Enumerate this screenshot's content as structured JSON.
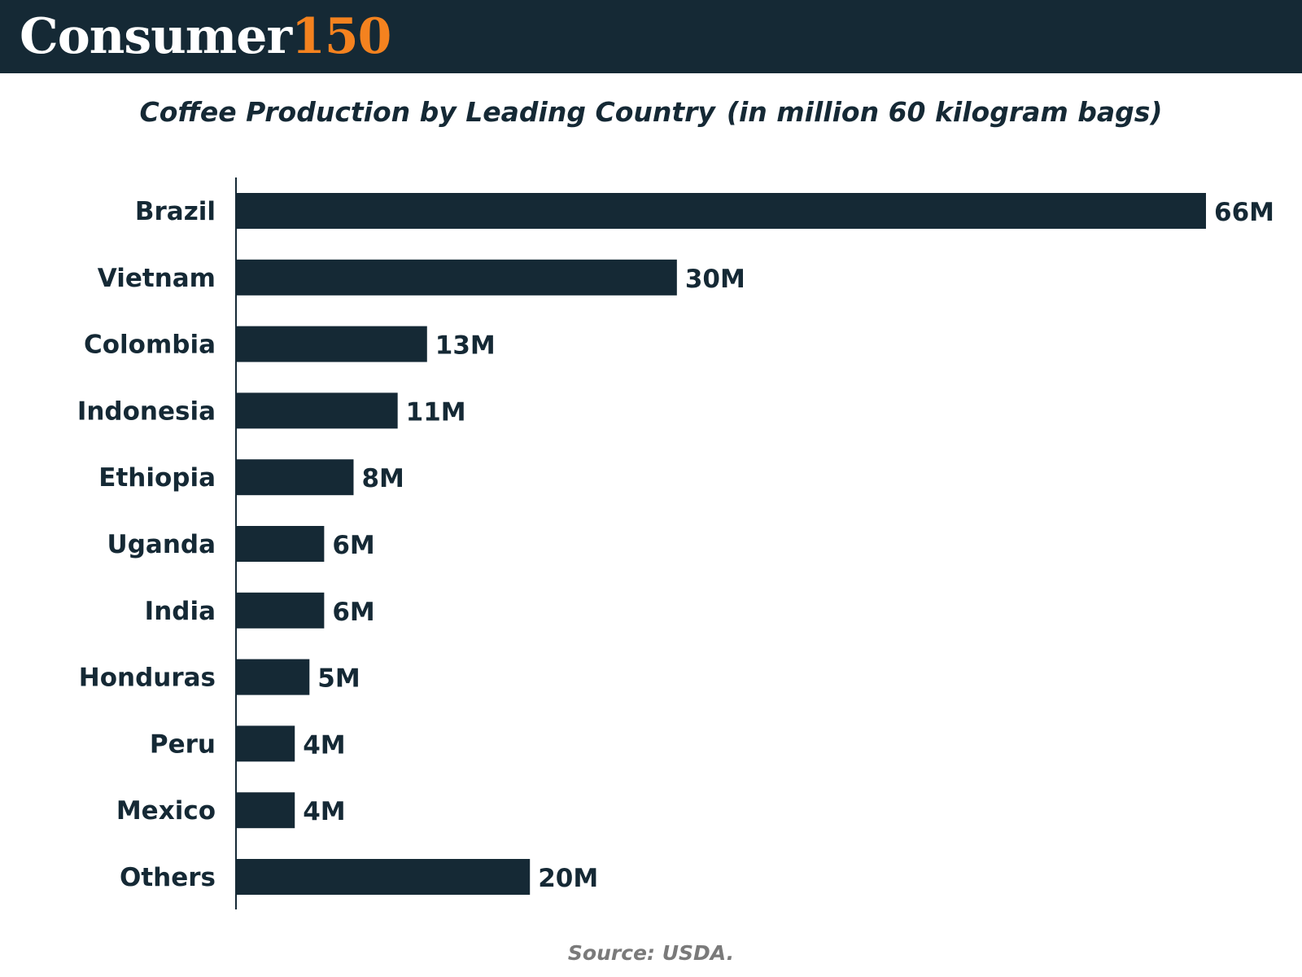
{
  "header": {
    "logo_word": "Consumer",
    "logo_number": "150"
  },
  "colors": {
    "header_background": "#152935",
    "bar": "#152935",
    "logo_accent": "#f4821f",
    "source_text": "#7a7a7a"
  },
  "chart_data": {
    "type": "bar",
    "orientation": "horizontal",
    "title": "Coffee Production by Leading Country",
    "subtitle": "(in million 60 kilogram bags)",
    "categories": [
      "Brazil",
      "Vietnam",
      "Colombia",
      "Indonesia",
      "Ethiopia",
      "Uganda",
      "India",
      "Honduras",
      "Peru",
      "Mexico",
      "Others"
    ],
    "values": [
      66,
      30,
      13,
      11,
      8,
      6,
      6,
      5,
      4,
      4,
      20
    ],
    "data_labels": [
      "66M",
      "30M",
      "13M",
      "11M",
      "8M",
      "6M",
      "6M",
      "5M",
      "4M",
      "4M",
      "20M"
    ],
    "xlim": [
      0,
      66
    ],
    "grid": false,
    "legend": "none"
  },
  "source": "Source: USDA."
}
